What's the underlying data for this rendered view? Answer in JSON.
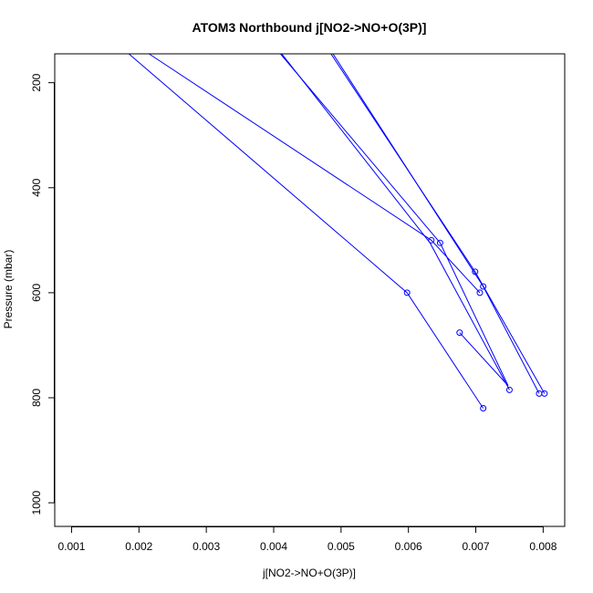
{
  "chart_data": {
    "type": "line",
    "title": "ATOM3 Northbound j[NO2->NO+O(3P)]",
    "xlabel": "j[NO2->NO+O(3P)]",
    "ylabel": "Pressure (mbar)",
    "xlim": [
      0.00075,
      0.00832
    ],
    "ylim": [
      1045,
      145
    ],
    "y_reversed": true,
    "grid": false,
    "x_ticks": [
      {
        "value": 0.001,
        "label": "0.001"
      },
      {
        "value": 0.002,
        "label": "0.002"
      },
      {
        "value": 0.003,
        "label": "0.003"
      },
      {
        "value": 0.004,
        "label": "0.004"
      },
      {
        "value": 0.005,
        "label": "0.005"
      },
      {
        "value": 0.006,
        "label": "0.006"
      },
      {
        "value": 0.007,
        "label": "0.007"
      },
      {
        "value": 0.008,
        "label": "0.008"
      }
    ],
    "y_ticks": [
      {
        "value": 200,
        "label": "200"
      },
      {
        "value": 400,
        "label": "400"
      },
      {
        "value": 600,
        "label": "600"
      },
      {
        "value": 800,
        "label": "800"
      },
      {
        "value": 1000,
        "label": "1000"
      }
    ],
    "color": "#0000ff",
    "series": [
      {
        "values": [
          {
            "x": 0.00185,
            "y": 145
          },
          {
            "x": 0.00598,
            "y": 600
          },
          {
            "x": 0.00711,
            "y": 820
          }
        ]
      },
      {
        "values": [
          {
            "x": 0.00215,
            "y": 145
          },
          {
            "x": 0.00634,
            "y": 500
          },
          {
            "x": 0.00706,
            "y": 600
          }
        ]
      },
      {
        "values": [
          {
            "x": 0.0041,
            "y": 145
          },
          {
            "x": 0.00647,
            "y": 505
          },
          {
            "x": 0.00748,
            "y": 777
          },
          {
            "x": 0.00676,
            "y": 676
          }
        ]
      },
      {
        "values": [
          {
            "x": 0.00412,
            "y": 145
          },
          {
            "x": 0.00632,
            "y": 505
          },
          {
            "x": 0.0075,
            "y": 785
          }
        ]
      },
      {
        "values": [
          {
            "x": 0.00485,
            "y": 145
          },
          {
            "x": 0.00699,
            "y": 560
          },
          {
            "x": 0.00802,
            "y": 792
          }
        ]
      },
      {
        "values": [
          {
            "x": 0.00488,
            "y": 145
          },
          {
            "x": 0.00711,
            "y": 588
          },
          {
            "x": 0.00794,
            "y": 792
          }
        ]
      }
    ],
    "points": [
      {
        "x": 0.00598,
        "y": 600
      },
      {
        "x": 0.00711,
        "y": 820
      },
      {
        "x": 0.00634,
        "y": 500
      },
      {
        "x": 0.00706,
        "y": 600
      },
      {
        "x": 0.00647,
        "y": 505
      },
      {
        "x": 0.00676,
        "y": 676
      },
      {
        "x": 0.0075,
        "y": 785
      },
      {
        "x": 0.00699,
        "y": 560
      },
      {
        "x": 0.00711,
        "y": 588
      },
      {
        "x": 0.00794,
        "y": 792
      },
      {
        "x": 0.00802,
        "y": 792
      }
    ]
  }
}
